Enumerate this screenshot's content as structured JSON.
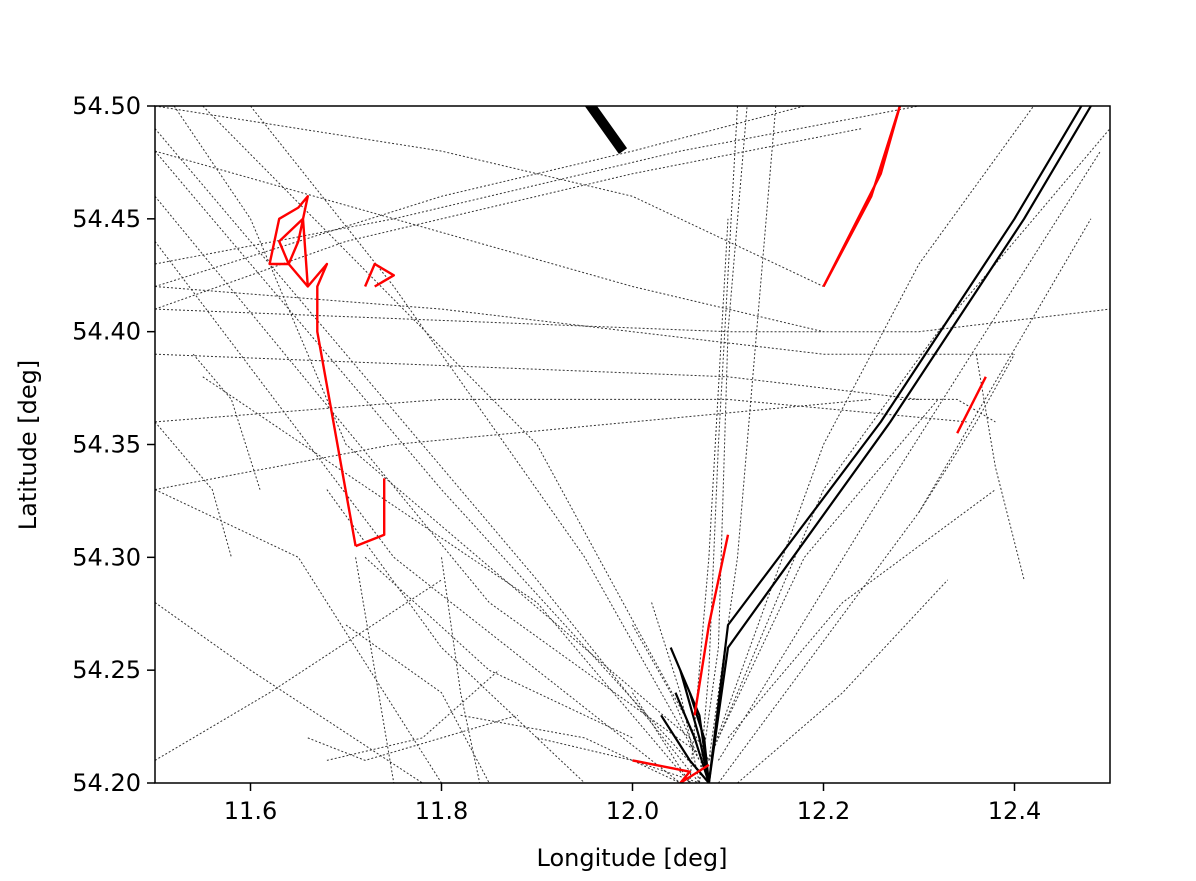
{
  "chart_data": {
    "type": "line",
    "title": "",
    "xlabel": "Longitude [deg]",
    "ylabel": "Latitude [deg]",
    "xlim": [
      11.5,
      12.5
    ],
    "ylim": [
      54.2,
      54.5
    ],
    "xticks": [
      "11.6",
      "11.8",
      "12.0",
      "12.2",
      "12.4"
    ],
    "xtick_values": [
      11.6,
      11.8,
      12.0,
      12.2,
      12.4
    ],
    "yticks": [
      "54.20",
      "54.25",
      "54.30",
      "54.35",
      "54.40",
      "54.45",
      "54.50"
    ],
    "ytick_values": [
      54.2,
      54.25,
      54.3,
      54.35,
      54.4,
      54.45,
      54.5
    ],
    "grid": false,
    "series": [
      {
        "style": "dotted-black",
        "x": [
          11.5,
          11.8,
          12.08
        ],
        "y": [
          54.48,
          54.33,
          54.2
        ]
      },
      {
        "style": "dotted-black",
        "x": [
          11.5,
          11.9,
          12.07
        ],
        "y": [
          54.49,
          54.29,
          54.2
        ]
      },
      {
        "style": "dotted-black",
        "x": [
          11.5,
          11.85,
          12.08
        ],
        "y": [
          54.46,
          54.28,
          54.21
        ]
      },
      {
        "style": "dotted-black",
        "x": [
          11.5,
          11.75,
          12.05
        ],
        "y": [
          54.44,
          54.3,
          54.2
        ]
      },
      {
        "style": "dotted-black",
        "x": [
          11.55,
          11.9,
          12.08
        ],
        "y": [
          54.5,
          54.35,
          54.21
        ]
      },
      {
        "style": "dotted-black",
        "x": [
          11.5,
          11.7,
          12.0,
          12.24
        ],
        "y": [
          54.41,
          54.44,
          54.47,
          54.49
        ]
      },
      {
        "style": "dotted-black",
        "x": [
          11.5,
          11.75,
          12.05,
          12.3
        ],
        "y": [
          54.43,
          54.45,
          54.48,
          54.5
        ]
      },
      {
        "style": "dotted-black",
        "x": [
          11.5,
          11.8,
          12.0,
          12.18
        ],
        "y": [
          54.42,
          54.46,
          54.48,
          54.5
        ]
      },
      {
        "style": "dotted-black",
        "x": [
          11.5,
          11.8,
          12.0,
          12.2
        ],
        "y": [
          54.5,
          54.48,
          54.46,
          54.42
        ]
      },
      {
        "style": "dotted-black",
        "x": [
          11.5,
          11.75,
          12.0,
          12.2
        ],
        "y": [
          54.48,
          54.45,
          54.42,
          54.4
        ]
      },
      {
        "style": "dotted-black",
        "x": [
          11.5,
          11.8,
          12.1,
          12.3,
          12.5
        ],
        "y": [
          54.41,
          54.405,
          54.4,
          54.4,
          54.41
        ]
      },
      {
        "style": "dotted-black",
        "x": [
          11.5,
          11.8,
          12.1,
          12.3
        ],
        "y": [
          54.39,
          54.385,
          54.38,
          54.37
        ]
      },
      {
        "style": "dotted-black",
        "x": [
          11.5,
          11.8,
          12.0,
          12.2,
          12.4
        ],
        "y": [
          54.42,
          54.41,
          54.4,
          54.39,
          54.39
        ]
      },
      {
        "style": "dotted-black",
        "x": [
          11.5,
          11.8,
          12.1,
          12.35
        ],
        "y": [
          54.36,
          54.37,
          54.37,
          54.36
        ]
      },
      {
        "style": "dotted-black",
        "x": [
          11.5,
          11.75,
          12.0,
          12.25
        ],
        "y": [
          54.33,
          54.35,
          54.36,
          54.37
        ]
      },
      {
        "style": "dotted-black",
        "x": [
          11.52,
          11.6,
          11.7,
          12.06
        ],
        "y": [
          54.5,
          54.45,
          54.35,
          54.22
        ]
      },
      {
        "style": "dotted-black",
        "x": [
          11.6,
          11.75,
          11.95,
          12.07
        ],
        "y": [
          54.5,
          54.42,
          54.3,
          54.21
        ]
      },
      {
        "style": "dotted-black",
        "x": [
          11.55,
          11.9,
          12.06
        ],
        "y": [
          54.38,
          54.28,
          54.2
        ]
      },
      {
        "style": "dotted-black",
        "x": [
          11.5,
          11.65,
          11.8
        ],
        "y": [
          54.33,
          54.3,
          54.2
        ]
      },
      {
        "style": "dotted-black",
        "x": [
          11.68,
          11.8,
          11.95
        ],
        "y": [
          54.33,
          54.26,
          54.2
        ]
      },
      {
        "style": "dotted-black",
        "x": [
          11.72,
          11.85,
          12.0
        ],
        "y": [
          54.3,
          54.25,
          54.22
        ]
      },
      {
        "style": "dotted-black",
        "x": [
          11.7,
          11.8,
          11.85
        ],
        "y": [
          54.27,
          54.24,
          54.2
        ]
      },
      {
        "style": "dotted-black",
        "x": [
          11.68,
          11.78,
          11.86
        ],
        "y": [
          54.21,
          54.22,
          54.25
        ]
      },
      {
        "style": "dotted-black",
        "x": [
          11.71,
          11.73,
          11.75
        ],
        "y": [
          54.3,
          54.25,
          54.2
        ]
      },
      {
        "style": "dotted-black",
        "x": [
          11.8,
          11.82,
          11.84
        ],
        "y": [
          54.3,
          54.24,
          54.2
        ]
      },
      {
        "style": "dotted-black",
        "x": [
          11.66,
          11.72,
          11.8,
          11.88
        ],
        "y": [
          54.22,
          54.21,
          54.22,
          54.23
        ]
      },
      {
        "style": "dotted-black",
        "x": [
          11.5,
          11.6,
          11.78
        ],
        "y": [
          54.28,
          54.25,
          54.2
        ]
      },
      {
        "style": "dotted-black",
        "x": [
          11.5,
          11.62,
          11.8
        ],
        "y": [
          54.21,
          54.24,
          54.29
        ]
      },
      {
        "style": "dotted-black",
        "x": [
          11.5,
          11.56,
          11.58
        ],
        "y": [
          54.36,
          54.33,
          54.3
        ]
      },
      {
        "style": "dotted-black",
        "x": [
          11.54,
          11.58,
          11.61
        ],
        "y": [
          54.39,
          54.37,
          54.33
        ]
      },
      {
        "style": "dotted-black",
        "x": [
          12.07,
          12.09,
          12.1,
          12.12
        ],
        "y": [
          54.2,
          54.26,
          54.4,
          54.5
        ]
      },
      {
        "style": "dotted-black",
        "x": [
          12.07,
          12.08,
          12.09,
          12.11
        ],
        "y": [
          54.2,
          54.25,
          54.35,
          54.5
        ]
      },
      {
        "style": "dotted-black",
        "x": [
          12.06,
          12.08,
          12.1
        ],
        "y": [
          54.2,
          54.3,
          54.45
        ]
      },
      {
        "style": "dotted-black",
        "x": [
          12.08,
          12.11,
          12.14,
          12.15
        ],
        "y": [
          54.21,
          54.3,
          54.45,
          54.5
        ]
      },
      {
        "style": "dotted-black",
        "x": [
          12.08,
          12.2,
          12.3,
          12.42
        ],
        "y": [
          54.21,
          54.35,
          54.43,
          54.5
        ]
      },
      {
        "style": "dotted-black",
        "x": [
          12.08,
          12.2,
          12.32,
          12.5
        ],
        "y": [
          54.21,
          54.33,
          54.4,
          54.49
        ]
      },
      {
        "style": "dotted-black",
        "x": [
          12.09,
          12.25,
          12.4,
          12.49
        ],
        "y": [
          54.21,
          54.32,
          54.42,
          54.48
        ]
      },
      {
        "style": "dotted-black",
        "x": [
          12.09,
          12.18,
          12.32
        ],
        "y": [
          54.22,
          54.3,
          54.37
        ]
      },
      {
        "style": "dotted-black",
        "x": [
          12.1,
          12.22,
          12.38
        ],
        "y": [
          54.22,
          54.28,
          54.33
        ]
      },
      {
        "style": "dotted-black",
        "x": [
          12.09,
          12.3,
          12.48
        ],
        "y": [
          54.2,
          54.32,
          54.45
        ]
      },
      {
        "style": "dotted-black",
        "x": [
          12.11,
          12.22,
          12.33
        ],
        "y": [
          54.2,
          54.24,
          54.29
        ]
      },
      {
        "style": "dotted-black",
        "x": [
          12.3,
          12.36,
          12.4
        ],
        "y": [
          54.32,
          54.36,
          54.39
        ]
      },
      {
        "style": "dotted-black",
        "x": [
          12.28,
          12.34,
          12.38
        ],
        "y": [
          54.37,
          54.37,
          54.36
        ]
      },
      {
        "style": "dotted-black",
        "x": [
          12.36,
          12.38,
          12.41
        ],
        "y": [
          54.39,
          54.34,
          54.29
        ]
      },
      {
        "style": "dotted-black",
        "x": [
          12.0,
          12.03,
          12.06
        ],
        "y": [
          54.24,
          54.22,
          54.2
        ]
      },
      {
        "style": "dotted-black",
        "x": [
          12.0,
          12.04,
          12.07
        ],
        "y": [
          54.27,
          54.24,
          54.21
        ]
      },
      {
        "style": "dotted-black",
        "x": [
          12.02,
          12.05,
          12.07
        ],
        "y": [
          54.28,
          54.24,
          54.2
        ]
      },
      {
        "style": "dotted-black",
        "x": [
          11.9,
          12.0,
          12.07
        ],
        "y": [
          54.22,
          54.21,
          54.2
        ]
      },
      {
        "style": "dotted-black",
        "x": [
          11.82,
          11.95,
          12.05
        ],
        "y": [
          54.23,
          54.22,
          54.2
        ]
      },
      {
        "style": "solid-black",
        "x": [
          12.08,
          12.1,
          12.26,
          12.4,
          12.47
        ],
        "y": [
          54.2,
          54.27,
          54.36,
          54.45,
          54.5
        ]
      },
      {
        "style": "solid-black",
        "x": [
          12.08,
          12.1,
          12.27,
          12.41,
          12.48
        ],
        "y": [
          54.2,
          54.26,
          54.36,
          54.45,
          54.5
        ]
      },
      {
        "style": "solid-black",
        "x": [
          12.06,
          12.075,
          12.08
        ],
        "y": [
          54.24,
          54.22,
          54.2
        ]
      },
      {
        "style": "solid-black",
        "x": [
          12.045,
          12.065,
          12.08
        ],
        "y": [
          54.24,
          54.22,
          54.2
        ]
      },
      {
        "style": "solid-black",
        "x": [
          12.05,
          12.07,
          12.08
        ],
        "y": [
          54.25,
          54.22,
          54.2
        ]
      },
      {
        "style": "solid-black",
        "x": [
          12.03,
          12.06,
          12.08
        ],
        "y": [
          54.23,
          54.21,
          54.2
        ]
      },
      {
        "style": "solid-black",
        "x": [
          12.04,
          12.07,
          12.08
        ],
        "y": [
          54.26,
          54.23,
          54.2
        ]
      },
      {
        "style": "solid-black-thick",
        "x": [
          11.948,
          11.99
        ],
        "y": [
          54.505,
          54.48
        ]
      },
      {
        "style": "solid-red",
        "x": [
          11.71,
          11.74,
          11.74
        ],
        "y": [
          54.305,
          54.31,
          54.335
        ]
      },
      {
        "style": "solid-red",
        "x": [
          11.71,
          11.67,
          11.67,
          11.68,
          11.66,
          11.64,
          11.62,
          11.63,
          11.65,
          11.66,
          11.65,
          11.64,
          11.63,
          11.655,
          11.66
        ],
        "y": [
          54.305,
          54.4,
          54.42,
          54.43,
          54.42,
          54.43,
          54.43,
          54.45,
          54.455,
          54.46,
          54.44,
          54.43,
          54.44,
          54.45,
          54.42
        ]
      },
      {
        "style": "solid-red",
        "x": [
          11.72,
          11.73,
          11.75,
          11.73
        ],
        "y": [
          54.42,
          54.43,
          54.425,
          54.42
        ]
      },
      {
        "style": "solid-red",
        "x": [
          12.2,
          12.26,
          12.28
        ],
        "y": [
          54.42,
          54.47,
          54.5
        ]
      },
      {
        "style": "solid-red",
        "x": [
          12.2,
          12.25,
          12.28
        ],
        "y": [
          54.42,
          54.46,
          54.5
        ]
      },
      {
        "style": "solid-red",
        "x": [
          12.065,
          12.08,
          12.1
        ],
        "y": [
          54.23,
          54.27,
          54.31
        ]
      },
      {
        "style": "solid-red",
        "x": [
          12.34,
          12.37
        ],
        "y": [
          54.355,
          54.38
        ]
      },
      {
        "style": "solid-red",
        "x": [
          12.0,
          12.06,
          12.05,
          12.08
        ],
        "y": [
          54.21,
          54.205,
          54.2,
          54.208
        ]
      }
    ]
  }
}
